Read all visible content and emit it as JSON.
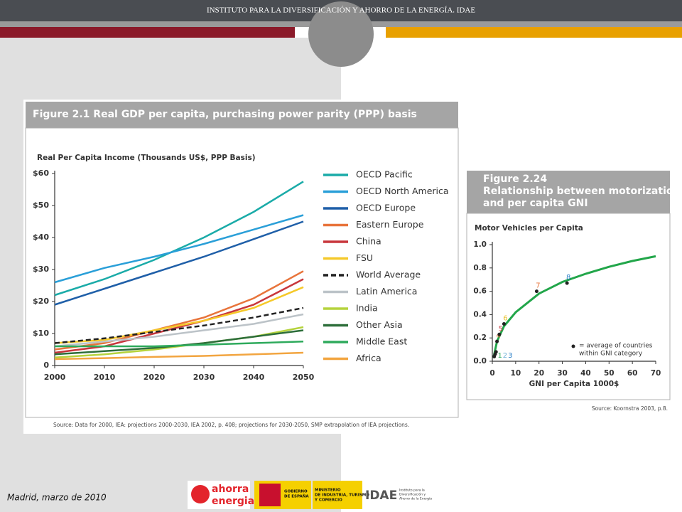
{
  "header": {
    "title": "INSTITUTO PARA LA DIVERSIFICACIÓN Y AHORRO DE LA ENERGÍA. IDAE"
  },
  "footer": {
    "date": "Madrid, marzo de 2010",
    "logos": {
      "ahorra": [
        "ahorra",
        "energia"
      ],
      "gobierno": [
        "GOBIERNO",
        "DE ESPAÑA"
      ],
      "ministerio": [
        "MINISTERIO",
        "DE INDUSTRIA, TURISMO",
        "Y COMERCIO"
      ],
      "idae": "IDAE",
      "idae_sub": [
        "Instituto para la",
        "Diversificación y",
        "Ahorro de la Energía"
      ]
    }
  },
  "chart_data": [
    {
      "type": "line",
      "title": [
        "Figure 2.1  Real GDP per capita, purchasing power parity (PPP) basis"
      ],
      "y_label": "Real Per Capita Income (Thousands US$, PPP Basis)",
      "source": "Source: Data for 2000, IEA: projections 2000-2030, IEA 2002, p. 408; projections for 2030-2050, SMP extrapolation of IEA projections.",
      "x": [
        2000,
        2010,
        2020,
        2030,
        2040,
        2050
      ],
      "xlim": [
        2000,
        2050
      ],
      "xticks": [
        2000,
        2010,
        2020,
        2030,
        2040,
        2050
      ],
      "ylim": [
        0,
        60
      ],
      "yticks": [
        {
          "value": 0,
          "label": "0"
        },
        {
          "value": 10,
          "label": "$10"
        },
        {
          "value": 20,
          "label": "$20"
        },
        {
          "value": 30,
          "label": "$30"
        },
        {
          "value": 40,
          "label": "$40"
        },
        {
          "value": 50,
          "label": "$50"
        },
        {
          "value": 60,
          "label": "$60"
        }
      ],
      "series": [
        {
          "name": "OECD Pacific",
          "color": "#1aaba8",
          "values": [
            22,
            27,
            33,
            40,
            48,
            57.5
          ]
        },
        {
          "name": "OECD North America",
          "color": "#2a9fd8",
          "values": [
            26,
            30.5,
            34,
            38,
            42.5,
            47
          ]
        },
        {
          "name": "OECD Europe",
          "color": "#1f5fa8",
          "values": [
            19,
            24,
            29,
            34,
            39.5,
            45
          ]
        },
        {
          "name": "Eastern Europe",
          "color": "#e8743b",
          "values": [
            5,
            7,
            11,
            15,
            21,
            29.5
          ]
        },
        {
          "name": "China",
          "color": "#c8363c",
          "values": [
            4,
            6,
            10,
            14,
            19,
            27
          ]
        },
        {
          "name": "FSU",
          "color": "#f5c92a",
          "values": [
            7,
            8,
            11,
            14,
            18,
            24.5
          ]
        },
        {
          "name": "World Average",
          "color": "#222222",
          "dashed": true,
          "values": [
            7,
            8.5,
            10.5,
            12.5,
            15,
            18
          ]
        },
        {
          "name": "Latin America",
          "color": "#bcc3c8",
          "values": [
            6,
            7.5,
            9,
            11,
            13,
            16
          ]
        },
        {
          "name": "India",
          "color": "#b5d33d",
          "values": [
            2.5,
            3.5,
            5,
            7,
            9,
            12
          ]
        },
        {
          "name": "Other Asia",
          "color": "#2d6e3a",
          "values": [
            3.5,
            4.5,
            5.5,
            7,
            9,
            11
          ]
        },
        {
          "name": "Middle East",
          "color": "#2eaa5c",
          "values": [
            6,
            6,
            6,
            6.5,
            7,
            7.5
          ]
        },
        {
          "name": "Africa",
          "color": "#f2a540",
          "values": [
            2,
            2.3,
            2.7,
            3,
            3.5,
            4
          ]
        }
      ]
    },
    {
      "type": "scatter",
      "title": [
        "Figure 2.24",
        "Relationship between motorization",
        "and per capita GNI"
      ],
      "y_label": "Motor Vehicles per Capita",
      "x_label": "GNI per Capita 1000$",
      "source": "Source: Koornstra 2003, p.8.",
      "legend_note": [
        "= average of countries",
        "within GNI category"
      ],
      "x": [
        0.8,
        1.2,
        1.6,
        2,
        3,
        5,
        19,
        32
      ],
      "values": [
        0.04,
        0.06,
        0.08,
        0.17,
        0.23,
        0.32,
        0.6,
        0.67
      ],
      "point_labels": [
        "1",
        "2",
        "3",
        "4",
        "5",
        "6",
        "7",
        "8"
      ],
      "point_label_colors": [
        "#2eaa5c",
        "#6aaed6",
        "#2a7fc8",
        "#e8743b",
        "#c8363c",
        "#e8c02a",
        "#e8743b",
        "#2a7fc8"
      ],
      "color": "#222222",
      "trend": {
        "color": "#22a64a",
        "x": [
          0.5,
          2,
          5,
          10,
          20,
          30,
          40,
          50,
          60,
          70
        ],
        "values": [
          0.03,
          0.17,
          0.3,
          0.42,
          0.58,
          0.68,
          0.75,
          0.81,
          0.86,
          0.9
        ]
      },
      "xlim": [
        0,
        70
      ],
      "xticks": [
        0,
        10,
        20,
        30,
        40,
        50,
        60,
        70
      ],
      "ylim": [
        0,
        1
      ],
      "yticks": [
        {
          "value": 0,
          "label": "0.0"
        },
        0.2,
        0.4,
        0.6,
        0.8,
        {
          "value": 1,
          "label": "1.0"
        }
      ]
    }
  ]
}
